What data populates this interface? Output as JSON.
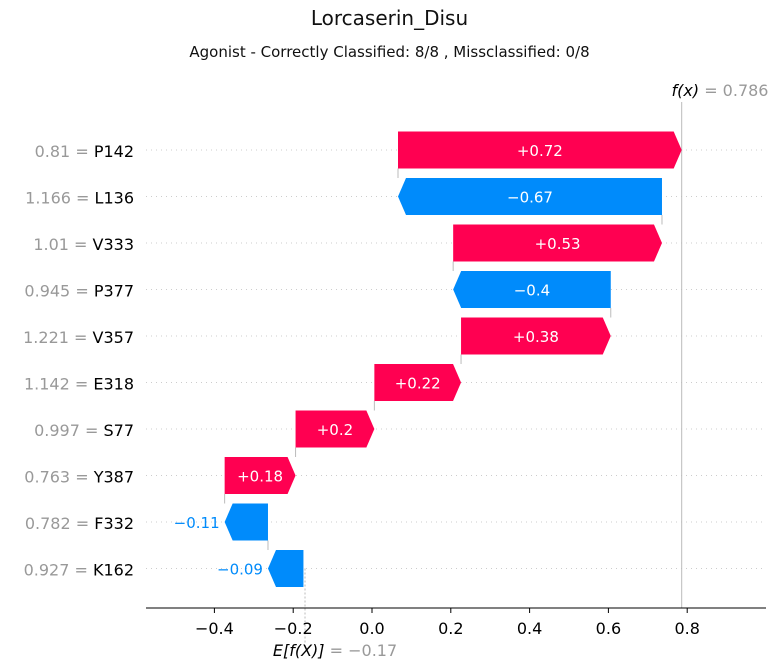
{
  "title": "Lorcaserin_Disu",
  "subtitle": "Agonist - Correctly Classified: 8/8 , Missclassified: 0/8",
  "colors": {
    "positive": "#ff0051",
    "negative": "#008bfb",
    "value_label": "#999999",
    "axis": "#000000"
  },
  "chart_data": {
    "type": "waterfall",
    "base_value": -0.17,
    "output_value": 0.786,
    "base_label": "E[f(X)]",
    "base_value_text": "= −0.17",
    "output_label": "f(x)",
    "output_value_text": "= 0.786",
    "xlim": [
      -0.57,
      0.98
    ],
    "xticks": [
      -0.4,
      -0.2,
      0.0,
      0.2,
      0.4,
      0.6,
      0.8
    ],
    "xtick_labels": [
      "−0.4",
      "−0.2",
      "0.0",
      "0.2",
      "0.4",
      "0.6",
      "0.8"
    ],
    "features": [
      {
        "value_text": "0.81 =",
        "name": "P142",
        "start": 0.066,
        "end": 0.786,
        "label": "+0.72"
      },
      {
        "value_text": "1.166 =",
        "name": "L136",
        "start": 0.736,
        "end": 0.066,
        "label": "−0.67"
      },
      {
        "value_text": "1.01 =",
        "name": "V333",
        "start": 0.206,
        "end": 0.736,
        "label": "+0.53"
      },
      {
        "value_text": "0.945 =",
        "name": "P377",
        "start": 0.606,
        "end": 0.206,
        "label": "−0.4"
      },
      {
        "value_text": "1.221 =",
        "name": "V357",
        "start": 0.226,
        "end": 0.606,
        "label": "+0.38"
      },
      {
        "value_text": "1.142 =",
        "name": "E318",
        "start": 0.006,
        "end": 0.226,
        "label": "+0.22"
      },
      {
        "value_text": "0.997 =",
        "name": "S77",
        "start": -0.194,
        "end": 0.006,
        "label": "+0.2"
      },
      {
        "value_text": "0.763 =",
        "name": "Y387",
        "start": -0.374,
        "end": -0.194,
        "label": "+0.18"
      },
      {
        "value_text": "0.782 =",
        "name": "F332",
        "start": -0.264,
        "end": -0.374,
        "label": "−0.11"
      },
      {
        "value_text": "0.927 =",
        "name": "K162",
        "start": -0.174,
        "end": -0.264,
        "label": "−0.09"
      }
    ]
  }
}
